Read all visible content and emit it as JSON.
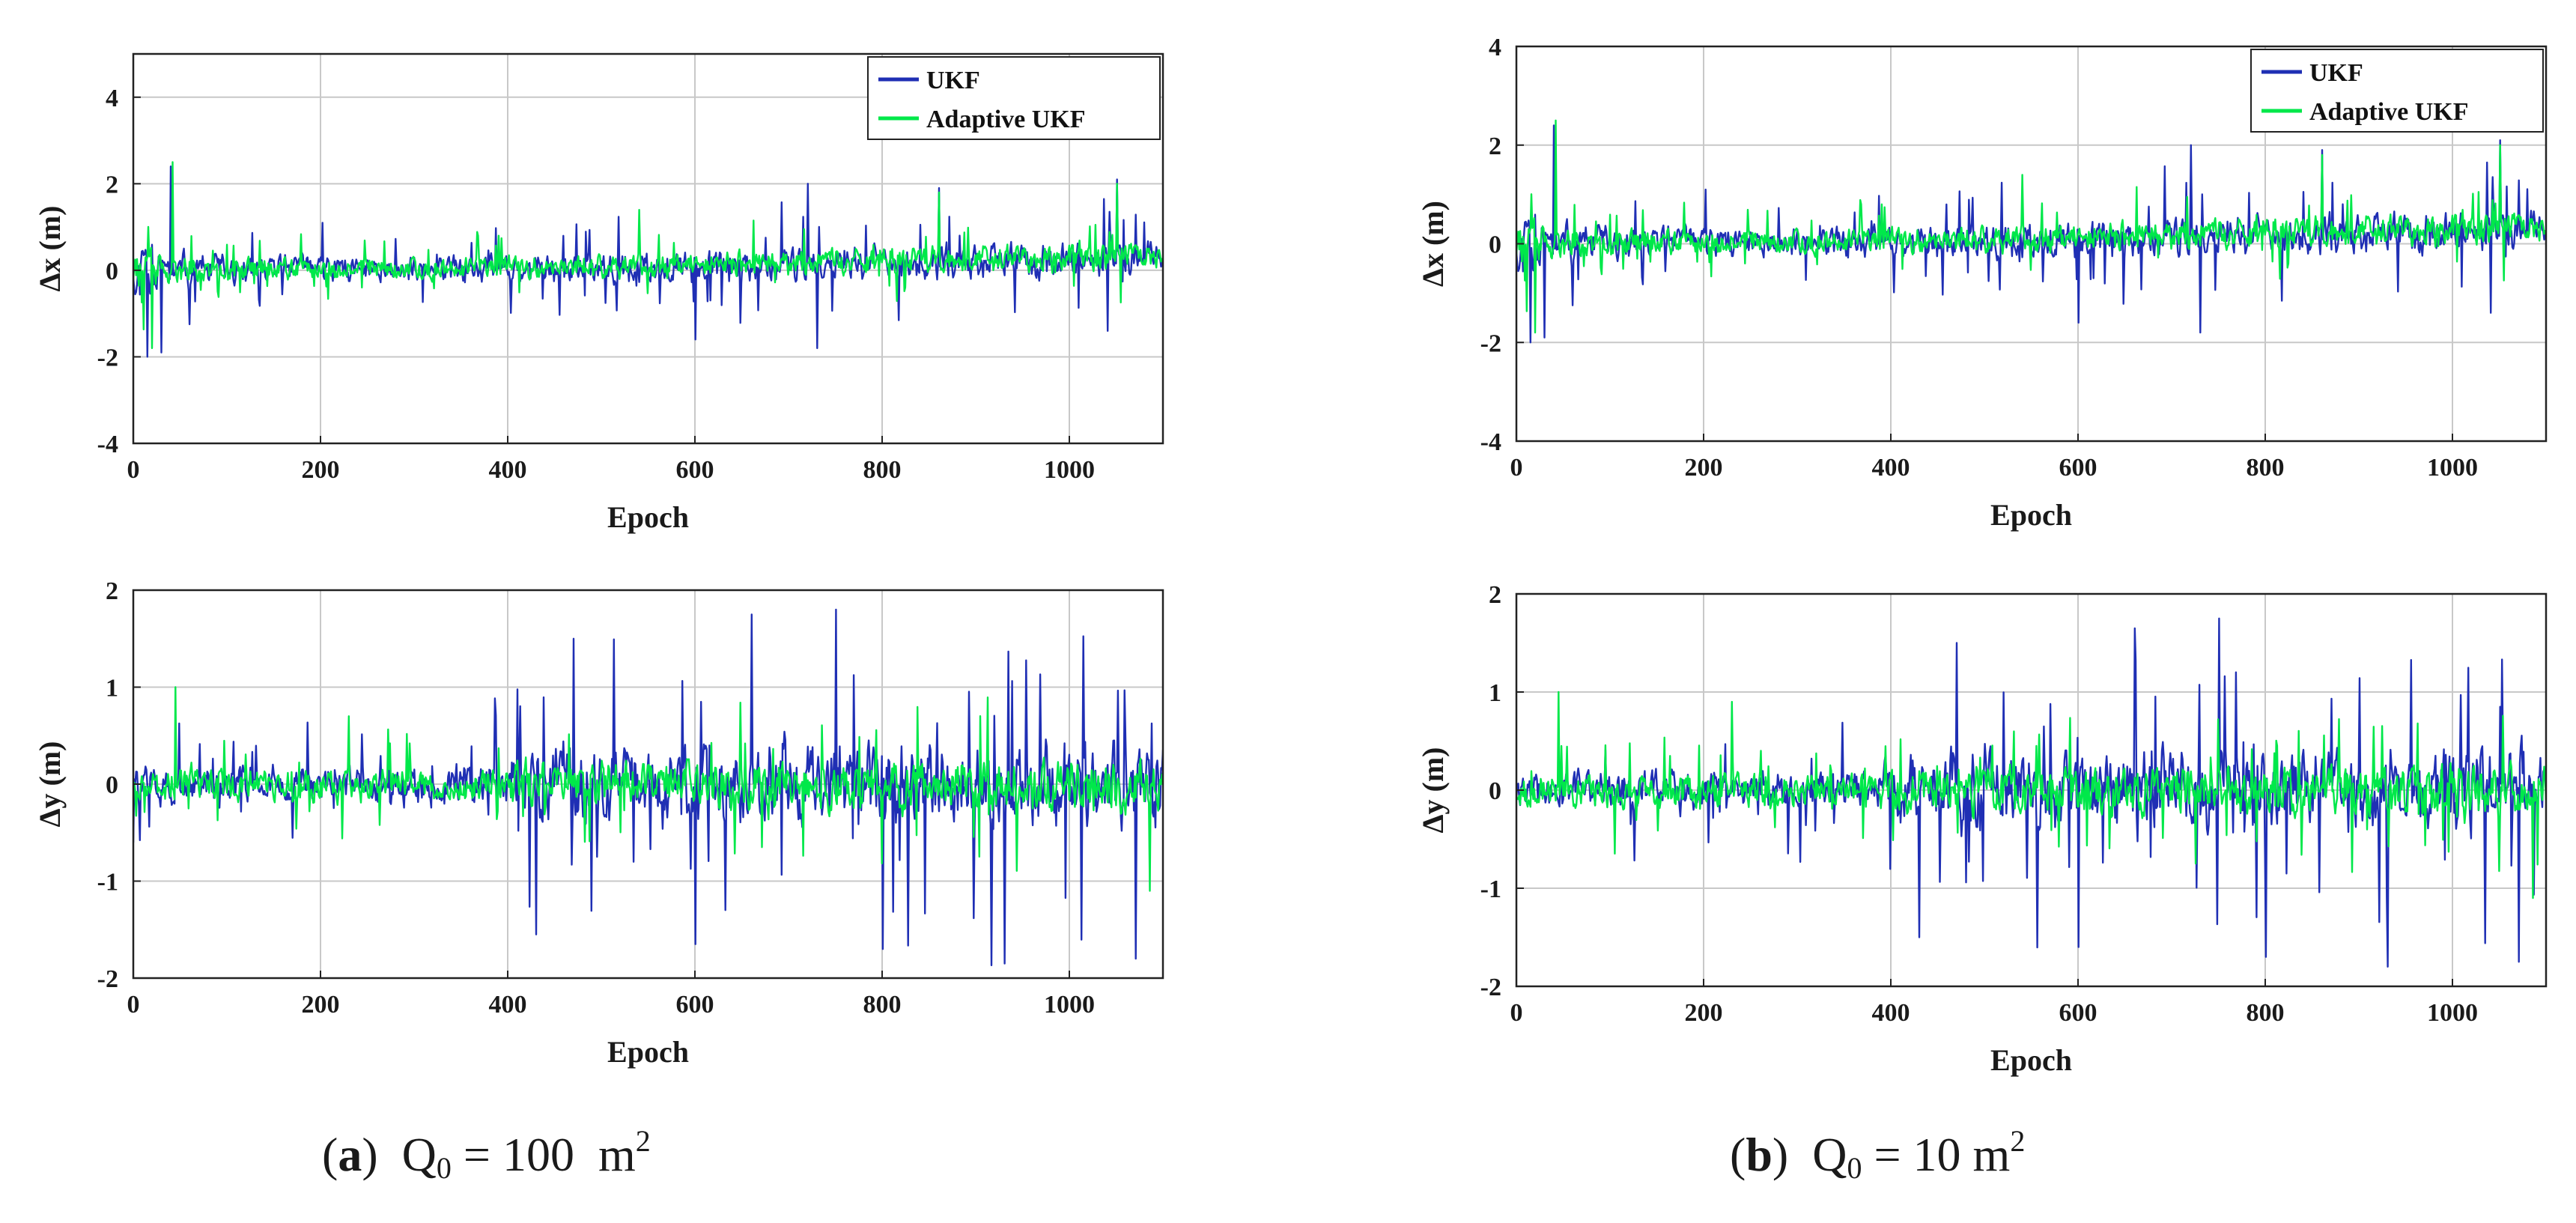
{
  "colors": {
    "ukf": "#1f2fb4",
    "adaptive_ukf": "#00e84a",
    "grid": "#c8c8c8",
    "axis": "#222222"
  },
  "legend": {
    "ukf": "UKF",
    "adaptive_ukf": "Adaptive UKF"
  },
  "captions": {
    "a": {
      "label": "a",
      "symbol": "Q",
      "sub": "0",
      "eq": "= 100",
      "unit": "m",
      "sup": "2"
    },
    "b": {
      "label": "b",
      "symbol": "Q",
      "sub": "0",
      "eq": "= 10",
      "unit": "m",
      "sup": "2"
    }
  },
  "chart_data": [
    {
      "id": "a-top",
      "type": "line",
      "panel": "a",
      "xlabel": "Epoch",
      "ylabel": "Δx (m)",
      "xlim": [
        0,
        1100
      ],
      "ylim": [
        -4,
        5
      ],
      "xticks": [
        0,
        200,
        400,
        600,
        800,
        1000
      ],
      "yticks": [
        -4,
        -2,
        0,
        2,
        4
      ],
      "legend": true,
      "legend_position": "top-right",
      "series": [
        {
          "name": "UKF",
          "color_key": "ukf",
          "seed": 11,
          "n": 1100,
          "envelope": [
            [
              0,
              0.9
            ],
            [
              80,
              0.55
            ],
            [
              400,
              0.55
            ],
            [
              600,
              0.7
            ],
            [
              1100,
              0.7
            ]
          ],
          "trend": [
            [
              0,
              0.0
            ],
            [
              600,
              0.05
            ],
            [
              1100,
              0.3
            ]
          ],
          "spikes": [
            [
              40,
              2.4
            ],
            [
              15,
              -2.0
            ],
            [
              30,
              -1.9
            ],
            [
              720,
              2.0
            ],
            [
              600,
              -1.6
            ],
            [
              1050,
              2.1
            ],
            [
              860,
              1.9
            ],
            [
              730,
              -1.8
            ],
            [
              1040,
              -1.4
            ]
          ]
        },
        {
          "name": "Adaptive UKF",
          "color_key": "adaptive_ukf",
          "seed": 29,
          "n": 1100,
          "envelope": [
            [
              0,
              0.85
            ],
            [
              80,
              0.45
            ],
            [
              400,
              0.45
            ],
            [
              600,
              0.55
            ],
            [
              1100,
              0.55
            ]
          ],
          "trend": [
            [
              0,
              0.0
            ],
            [
              600,
              0.1
            ],
            [
              1100,
              0.35
            ]
          ],
          "spikes": [
            [
              42,
              2.5
            ],
            [
              20,
              -1.8
            ],
            [
              860,
              1.8
            ],
            [
              1050,
              2.0
            ]
          ]
        }
      ]
    },
    {
      "id": "a-bottom",
      "type": "line",
      "panel": "a",
      "xlabel": "Epoch",
      "ylabel": "Δy (m)",
      "xlim": [
        0,
        1100
      ],
      "ylim": [
        -2,
        2
      ],
      "xticks": [
        0,
        200,
        400,
        600,
        800,
        1000
      ],
      "yticks": [
        -2,
        -1,
        0,
        1,
        2
      ],
      "legend": false,
      "series": [
        {
          "name": "UKF",
          "color_key": "ukf",
          "seed": 47,
          "n": 1100,
          "envelope": [
            [
              0,
              0.35
            ],
            [
              380,
              0.35
            ],
            [
              420,
              0.7
            ],
            [
              1100,
              0.85
            ]
          ],
          "trend": [
            [
              0,
              0.0
            ],
            [
              1100,
              0.0
            ]
          ],
          "spikes": [
            [
              470,
              1.5
            ],
            [
              750,
              1.8
            ],
            [
              660,
              1.75
            ],
            [
              930,
              -1.85
            ],
            [
              1070,
              -1.8
            ],
            [
              800,
              -1.7
            ],
            [
              600,
              -1.65
            ],
            [
              430,
              -1.55
            ]
          ]
        },
        {
          "name": "Adaptive UKF",
          "color_key": "adaptive_ukf",
          "seed": 53,
          "n": 1100,
          "envelope": [
            [
              0,
              0.3
            ],
            [
              380,
              0.3
            ],
            [
              420,
              0.4
            ],
            [
              1100,
              0.5
            ]
          ],
          "trend": [
            [
              0,
              0.0
            ],
            [
              1100,
              0.0
            ]
          ],
          "spikes": [
            [
              45,
              1.0
            ],
            [
              230,
              0.7
            ],
            [
              1085,
              -1.1
            ]
          ]
        }
      ]
    },
    {
      "id": "b-top",
      "type": "line",
      "panel": "b",
      "xlabel": "Epoch",
      "ylabel": "Δx (m)",
      "xlim": [
        0,
        1100
      ],
      "ylim": [
        -4,
        4
      ],
      "xticks": [
        0,
        200,
        400,
        600,
        800,
        1000
      ],
      "yticks": [
        -4,
        -2,
        0,
        2,
        4
      ],
      "legend": true,
      "legend_position": "top-right",
      "series": [
        {
          "name": "UKF",
          "color_key": "ukf",
          "seed": 11,
          "n": 1100,
          "envelope": [
            [
              0,
              0.9
            ],
            [
              80,
              0.55
            ],
            [
              400,
              0.55
            ],
            [
              600,
              0.7
            ],
            [
              1100,
              0.7
            ]
          ],
          "trend": [
            [
              0,
              0.0
            ],
            [
              600,
              0.05
            ],
            [
              1100,
              0.3
            ]
          ],
          "spikes": [
            [
              40,
              2.4
            ],
            [
              15,
              -2.0
            ],
            [
              30,
              -1.9
            ],
            [
              720,
              2.0
            ],
            [
              600,
              -1.6
            ],
            [
              1050,
              2.1
            ],
            [
              860,
              1.9
            ],
            [
              730,
              -1.8
            ],
            [
              1040,
              -1.4
            ]
          ]
        },
        {
          "name": "Adaptive UKF",
          "color_key": "adaptive_ukf",
          "seed": 29,
          "n": 1100,
          "envelope": [
            [
              0,
              0.85
            ],
            [
              80,
              0.45
            ],
            [
              400,
              0.45
            ],
            [
              600,
              0.55
            ],
            [
              1100,
              0.55
            ]
          ],
          "trend": [
            [
              0,
              0.0
            ],
            [
              600,
              0.1
            ],
            [
              1100,
              0.35
            ]
          ],
          "spikes": [
            [
              42,
              2.5
            ],
            [
              20,
              -1.8
            ],
            [
              860,
              1.8
            ],
            [
              1050,
              2.0
            ]
          ]
        }
      ]
    },
    {
      "id": "b-bottom",
      "type": "line",
      "panel": "b",
      "xlabel": "Epoch",
      "ylabel": "Δy (m)",
      "xlim": [
        0,
        1100
      ],
      "ylim": [
        -2,
        2
      ],
      "xticks": [
        0,
        200,
        400,
        600,
        800,
        1000
      ],
      "yticks": [
        -2,
        -1,
        0,
        1,
        2
      ],
      "legend": false,
      "series": [
        {
          "name": "UKF",
          "color_key": "ukf",
          "seed": 61,
          "n": 1100,
          "envelope": [
            [
              0,
              0.35
            ],
            [
              380,
              0.35
            ],
            [
              420,
              0.7
            ],
            [
              1100,
              0.8
            ]
          ],
          "trend": [
            [
              0,
              0.0
            ],
            [
              1100,
              0.0
            ]
          ],
          "spikes": [
            [
              470,
              1.5
            ],
            [
              750,
              1.75
            ],
            [
              660,
              1.65
            ],
            [
              930,
              -1.8
            ],
            [
              1070,
              -1.75
            ],
            [
              800,
              -1.7
            ],
            [
              600,
              -1.6
            ],
            [
              430,
              -1.5
            ]
          ]
        },
        {
          "name": "Adaptive UKF",
          "color_key": "adaptive_ukf",
          "seed": 67,
          "n": 1100,
          "envelope": [
            [
              0,
              0.3
            ],
            [
              380,
              0.3
            ],
            [
              420,
              0.4
            ],
            [
              1100,
              0.5
            ]
          ],
          "trend": [
            [
              0,
              0.0
            ],
            [
              1100,
              0.0
            ]
          ],
          "spikes": [
            [
              45,
              1.0
            ],
            [
              230,
              0.9
            ],
            [
              1085,
              -1.1
            ]
          ]
        }
      ]
    }
  ]
}
